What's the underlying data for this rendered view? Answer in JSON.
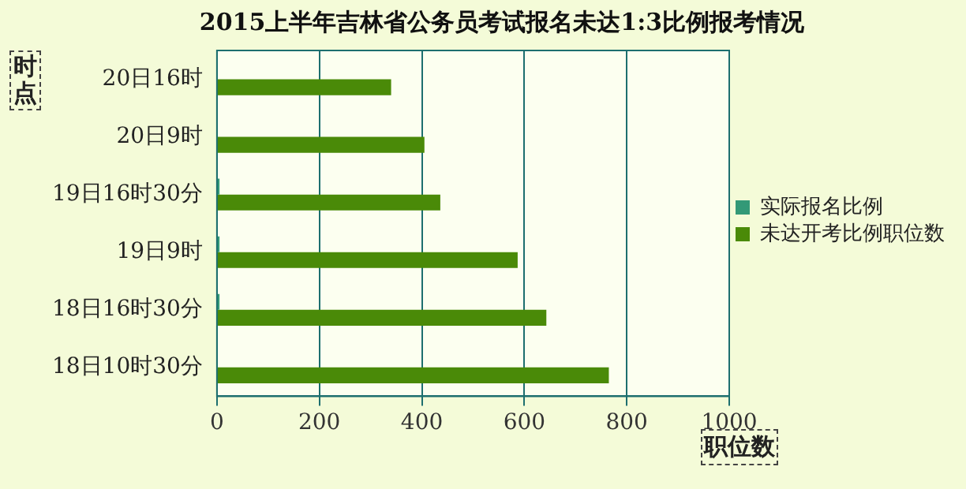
{
  "chart_data": {
    "type": "bar",
    "orientation": "horizontal",
    "title": "2015上半年吉林省公务员考试报名未达1:3比例报考情况",
    "xlabel": "职位数",
    "ylabel": "时点",
    "categories": [
      "20日16时",
      "20日9时",
      "19日16时30分",
      "19日9时",
      "18日16时30分",
      "18日10时30分"
    ],
    "series": [
      {
        "name": "实际报名比例",
        "color": "#339977",
        "values": [
          null,
          null,
          5,
          5,
          5,
          null
        ]
      },
      {
        "name": "未达开考比例职位数",
        "color": "#4a8a08",
        "values": [
          340,
          405,
          436,
          587,
          643,
          765
        ]
      }
    ],
    "xlim": [
      0,
      1000
    ],
    "xticks": [
      0,
      200,
      400,
      600,
      800,
      1000
    ],
    "grid": "x",
    "legend": "right"
  }
}
